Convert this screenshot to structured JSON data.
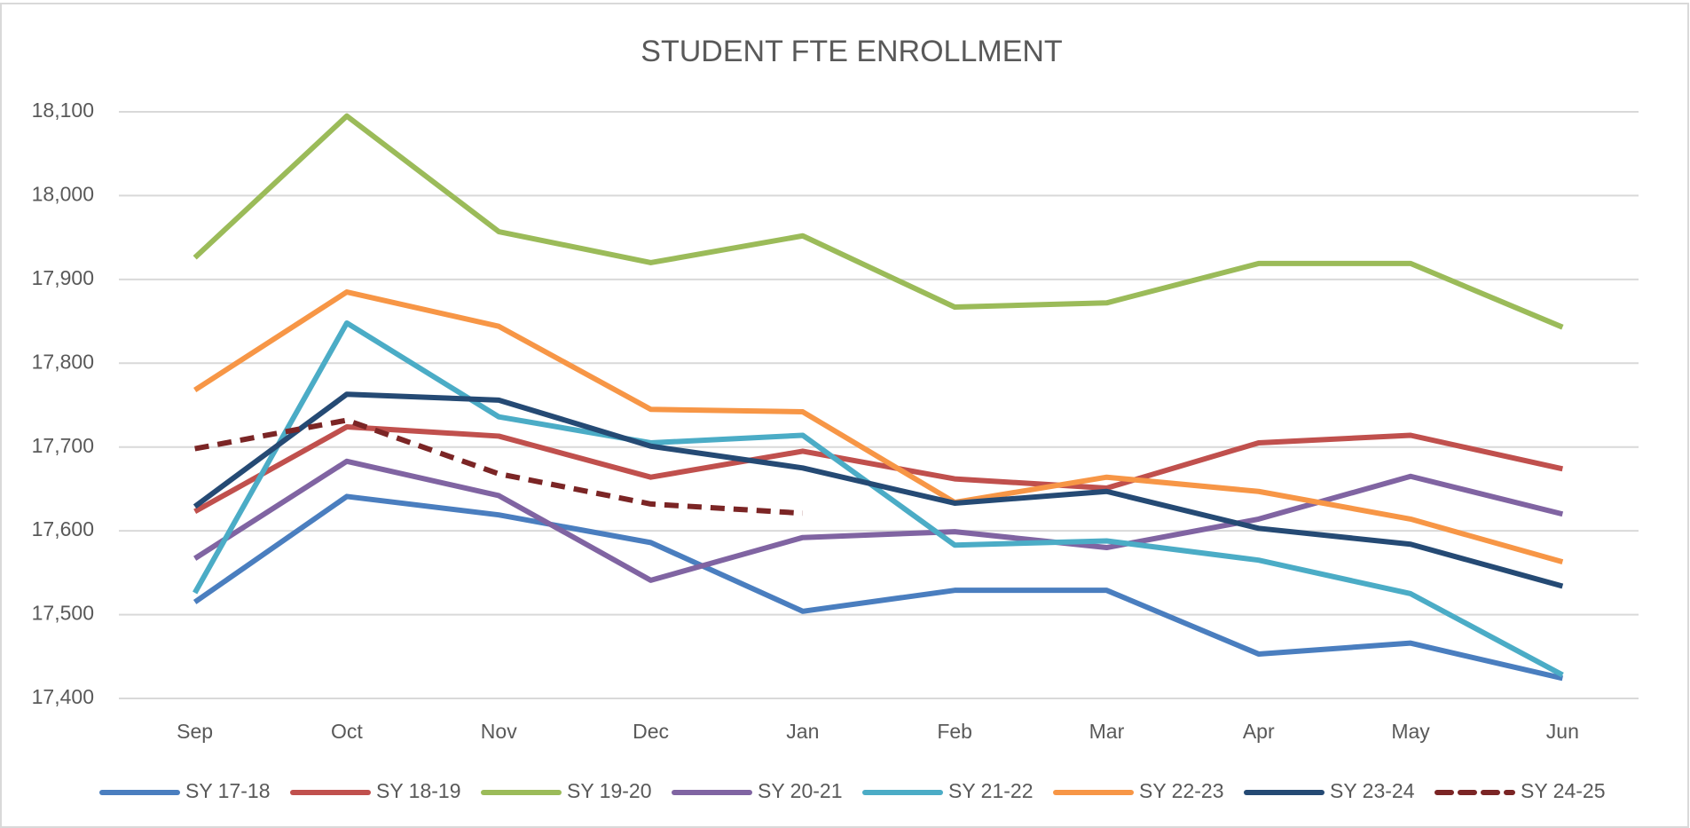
{
  "chart_data": {
    "type": "line",
    "title": "STUDENT FTE ENROLLMENT",
    "categories": [
      "Sep",
      "Oct",
      "Nov",
      "Dec",
      "Jan",
      "Feb",
      "Mar",
      "Apr",
      "May",
      "Jun"
    ],
    "ylim": [
      17400,
      18100
    ],
    "yticks": [
      {
        "value": 17400,
        "label": "17,400"
      },
      {
        "value": 17500,
        "label": "17,500"
      },
      {
        "value": 17600,
        "label": "17,600"
      },
      {
        "value": 17700,
        "label": "17,700"
      },
      {
        "value": 17800,
        "label": "17,800"
      },
      {
        "value": 17900,
        "label": "17,900"
      },
      {
        "value": 18000,
        "label": "18,000"
      },
      {
        "value": 18100,
        "label": "18,100"
      }
    ],
    "grid": true,
    "legend": "bottom",
    "series": [
      {
        "name": "SY 17-18",
        "color": "#4a7ebf",
        "values": [
          17515,
          17641,
          17619,
          17586,
          17504,
          17529,
          17529,
          17453,
          17466,
          17424
        ]
      },
      {
        "name": "SY 18-19",
        "color": "#c0504d",
        "values": [
          17623,
          17724,
          17713,
          17664,
          17695,
          17662,
          17651,
          17705,
          17714,
          17674
        ]
      },
      {
        "name": "SY 19-20",
        "color": "#9bbb59",
        "values": [
          17926,
          18095,
          17957,
          17920,
          17952,
          17867,
          17872,
          17919,
          17919,
          17843
        ]
      },
      {
        "name": "SY 20-21",
        "color": "#8064a2",
        "values": [
          17567,
          17683,
          17642,
          17541,
          17592,
          17599,
          17580,
          17614,
          17665,
          17620
        ]
      },
      {
        "name": "SY 21-22",
        "color": "#4bacc6",
        "values": [
          17526,
          17848,
          17736,
          17705,
          17714,
          17583,
          17588,
          17565,
          17525,
          17428
        ]
      },
      {
        "name": "SY 22-23",
        "color": "#f79646",
        "values": [
          17768,
          17885,
          17844,
          17745,
          17742,
          17634,
          17664,
          17647,
          17614,
          17563
        ]
      },
      {
        "name": "SY 23-24",
        "color": "#254a74",
        "values": [
          17629,
          17763,
          17756,
          17701,
          17675,
          17633,
          17647,
          17603,
          17584,
          17534
        ]
      },
      {
        "name": "SY 24-25",
        "color": "#7b2525",
        "dashed": true,
        "values": [
          17698,
          17732,
          17668,
          17632,
          17621,
          null,
          null,
          null,
          null,
          null
        ]
      }
    ]
  }
}
